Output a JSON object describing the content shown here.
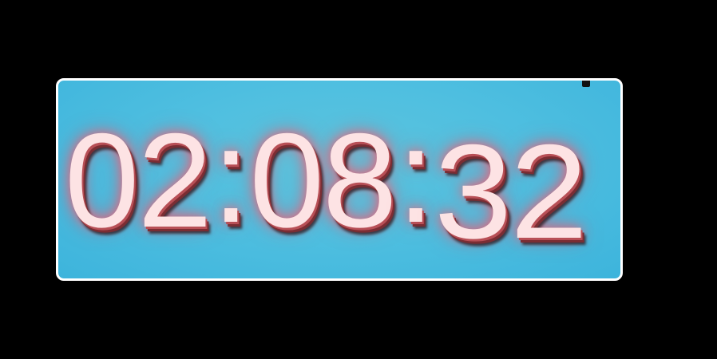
{
  "clock": {
    "hours": "02",
    "minutes": "08",
    "seconds": "32",
    "separator": ":",
    "colors": {
      "background": "#000000",
      "panel": "#4fbfe0",
      "panel_border": "#ffffff",
      "digits": "#fde3e4",
      "glow": "#ff5a6e"
    }
  }
}
